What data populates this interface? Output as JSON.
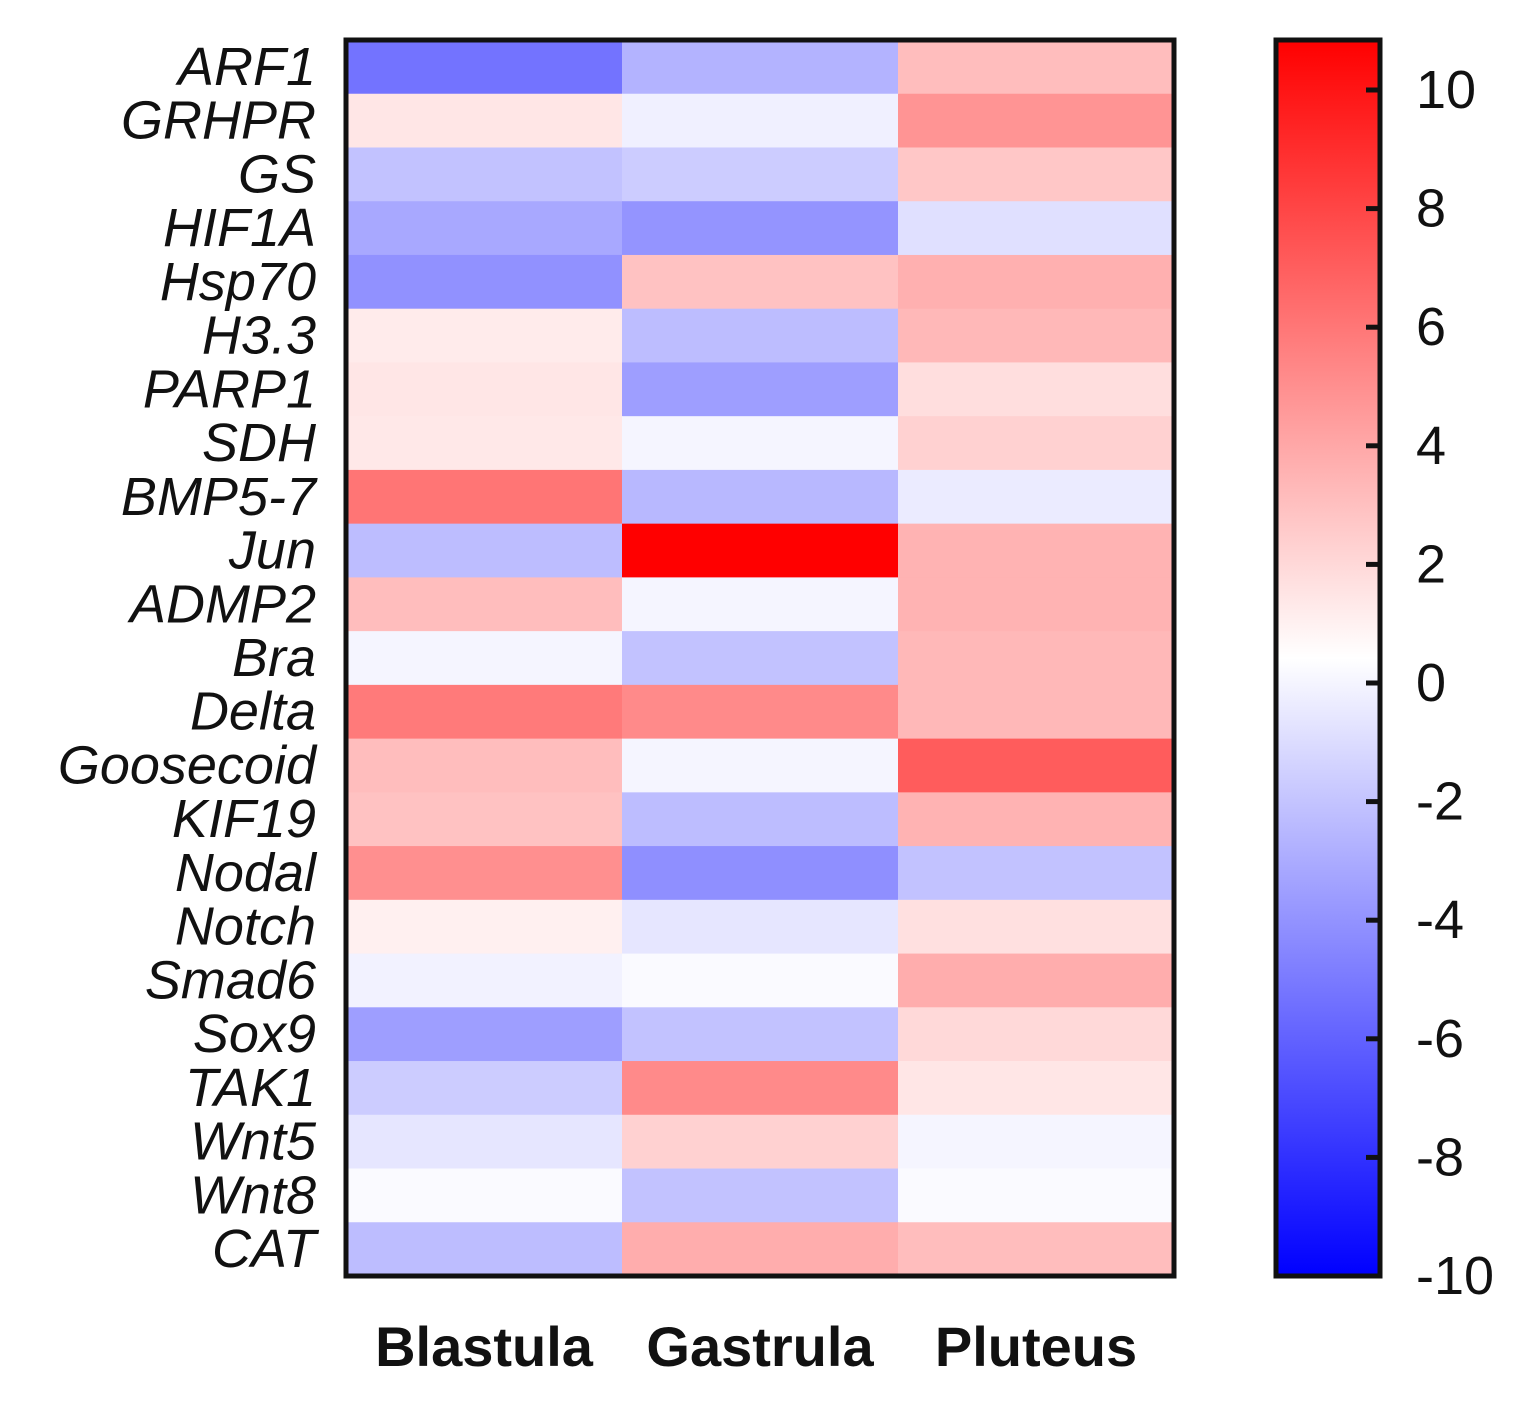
{
  "chart_data": {
    "type": "heatmap",
    "title": "",
    "rows": [
      "ARF1",
      "GRHPR",
      "GS",
      "HIF1A",
      "Hsp70",
      "H3.3",
      "PARP1",
      "SDH",
      "BMP5-7",
      "Jun",
      "ADMP2",
      "Bra",
      "Delta",
      "Goosecoid",
      "KIF19",
      "Nodal",
      "Notch",
      "Smad6",
      "Sox9",
      "TAK1",
      "Wnt5",
      "Wnt8",
      "CAT"
    ],
    "columns": [
      "Blastula",
      "Gastrula",
      "Pluteus"
    ],
    "values": [
      [
        -5.5,
        -3.0,
        2.6
      ],
      [
        1.0,
        -0.6,
        4.2
      ],
      [
        -2.4,
        -2.0,
        2.2
      ],
      [
        -3.4,
        -4.2,
        -1.2
      ],
      [
        -4.3,
        2.4,
        3.1
      ],
      [
        0.8,
        -2.6,
        2.8
      ],
      [
        1.0,
        -3.8,
        1.3
      ],
      [
        0.9,
        -0.4,
        1.8
      ],
      [
        5.4,
        -2.8,
        -0.8
      ],
      [
        -2.6,
        10.8,
        3.0
      ],
      [
        2.6,
        -0.4,
        3.0
      ],
      [
        -0.4,
        -2.4,
        2.8
      ],
      [
        5.2,
        4.6,
        2.8
      ],
      [
        2.6,
        -0.4,
        6.4
      ],
      [
        2.4,
        -2.6,
        3.0
      ],
      [
        4.4,
        -4.4,
        -2.4
      ],
      [
        0.6,
        -1.0,
        1.2
      ],
      [
        -0.5,
        -0.2,
        3.2
      ],
      [
        -3.8,
        -2.4,
        1.5
      ],
      [
        -2.0,
        4.6,
        1.0
      ],
      [
        -1.0,
        1.8,
        -0.4
      ],
      [
        -0.2,
        -2.4,
        -0.2
      ],
      [
        -2.6,
        3.2,
        2.6
      ]
    ],
    "colorbar": {
      "min": -10,
      "max": 10,
      "ticks": [
        10,
        8,
        6,
        4,
        2,
        0,
        -2,
        -4,
        -6,
        -8,
        -10
      ],
      "tick_labels": [
        "10",
        "8",
        "6",
        "4",
        "2",
        "0",
        "-2",
        "-4",
        "-6",
        "-8",
        "-10"
      ]
    },
    "colors": {
      "low": "#0000ff",
      "mid": "#ffffff",
      "high": "#ff0000",
      "border": "#111111"
    },
    "xlabel": "",
    "ylabel": "",
    "legend": "right"
  }
}
